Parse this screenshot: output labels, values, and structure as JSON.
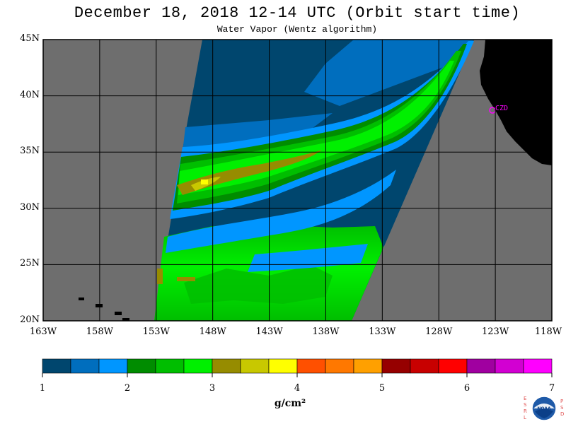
{
  "title": "December 18, 2018  12-14 UTC  (Orbit start time)",
  "subtitle": "Water Vapor (Wentz algorithm)",
  "units": "g/cm²",
  "station_label": "CZD",
  "lat_labels": [
    "45N",
    "40N",
    "35N",
    "30N",
    "25N",
    "20N"
  ],
  "lon_labels": [
    "163W",
    "158W",
    "153W",
    "148W",
    "143W",
    "138W",
    "133W",
    "128W",
    "123W",
    "118W"
  ],
  "colorbar": {
    "tick_labels": [
      "1",
      "2",
      "3",
      "4",
      "5",
      "6",
      "7"
    ],
    "colors": [
      "#00466e",
      "#006ebe",
      "#0096ff",
      "#008c00",
      "#00be00",
      "#00f000",
      "#968c00",
      "#c8c800",
      "#ffff00",
      "#ff5000",
      "#ff7800",
      "#ffa000",
      "#960000",
      "#c80000",
      "#ff0000",
      "#a000a0",
      "#d200d2",
      "#ff00ff"
    ]
  },
  "logo": {
    "left_letters": [
      "E",
      "S",
      "R",
      "L"
    ],
    "right_letters": [
      "P",
      "S",
      "D"
    ],
    "center_text": "NOAA"
  },
  "colors": {
    "no_data": "#6e6e6e",
    "land": "#000000",
    "station": "#ff00ff",
    "grid": "#000000"
  }
}
